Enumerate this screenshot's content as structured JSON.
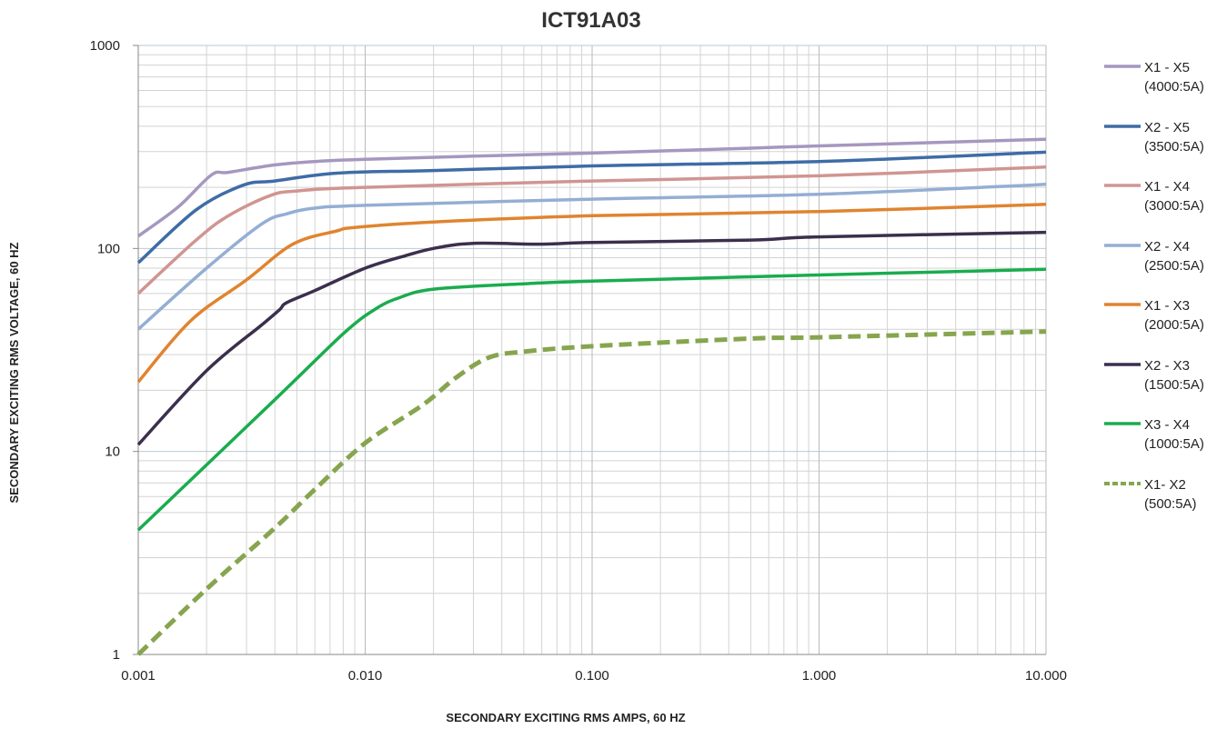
{
  "chart_data": {
    "type": "line",
    "title": "ICT91A03",
    "xlabel": "SECONDARY EXCITING RMS AMPS, 60 HZ",
    "ylabel": "SECONDARY EXCITING RMS VOLTAGE, 60 HZ",
    "x_scale": "log",
    "y_scale": "log",
    "xlim": [
      0.001,
      10
    ],
    "ylim": [
      1,
      1000
    ],
    "x_ticks": [
      "0.001",
      "0.010",
      "0.100",
      "1.000",
      "10.000"
    ],
    "y_ticks": [
      "1",
      "10",
      "100",
      "1000"
    ],
    "grid": true,
    "legend_position": "right",
    "series": [
      {
        "name": "X1 - X5",
        "sub": "(4000:5A)",
        "color": "#a697bf",
        "dash": false,
        "points": [
          [
            0.001,
            115
          ],
          [
            0.0015,
            160
          ],
          [
            0.0021,
            230
          ],
          [
            0.0025,
            237
          ],
          [
            0.004,
            258
          ],
          [
            0.006,
            268
          ],
          [
            0.01,
            275
          ],
          [
            0.03,
            285
          ],
          [
            0.1,
            295
          ],
          [
            0.5,
            312
          ],
          [
            1,
            320
          ],
          [
            10,
            345
          ]
        ]
      },
      {
        "name": "X2 - X5",
        "sub": "(3500:5A)",
        "color": "#3e6ca6",
        "dash": false,
        "points": [
          [
            0.001,
            85
          ],
          [
            0.0018,
            155
          ],
          [
            0.0029,
            205
          ],
          [
            0.004,
            215
          ],
          [
            0.0075,
            235
          ],
          [
            0.02,
            242
          ],
          [
            0.1,
            255
          ],
          [
            1,
            268
          ],
          [
            10,
            298
          ]
        ]
      },
      {
        "name": "X1 - X4",
        "sub": "(3000:5A)",
        "color": "#d09591",
        "dash": false,
        "points": [
          [
            0.001,
            60
          ],
          [
            0.0018,
            110
          ],
          [
            0.0025,
            145
          ],
          [
            0.0038,
            182
          ],
          [
            0.005,
            192
          ],
          [
            0.01,
            200
          ],
          [
            0.1,
            215
          ],
          [
            1,
            228
          ],
          [
            10,
            252
          ]
        ]
      },
      {
        "name": "X2 - X4",
        "sub": "(2500:5A)",
        "color": "#94aed4",
        "dash": false,
        "points": [
          [
            0.001,
            40
          ],
          [
            0.002,
            80
          ],
          [
            0.0035,
            132
          ],
          [
            0.0045,
            148
          ],
          [
            0.006,
            158
          ],
          [
            0.01,
            163
          ],
          [
            0.1,
            175
          ],
          [
            1,
            185
          ],
          [
            10,
            207
          ]
        ]
      },
      {
        "name": "X1 - X3",
        "sub": "(2000:5A)",
        "color": "#e08430",
        "dash": false,
        "points": [
          [
            0.001,
            22
          ],
          [
            0.0017,
            44
          ],
          [
            0.003,
            70
          ],
          [
            0.0048,
            105
          ],
          [
            0.0075,
            122
          ],
          [
            0.009,
            127
          ],
          [
            0.02,
            135
          ],
          [
            0.1,
            145
          ],
          [
            1,
            152
          ],
          [
            10,
            165
          ]
        ]
      },
      {
        "name": "X2 - X3",
        "sub": "(1500:5A)",
        "color": "#3b2f4d",
        "dash": false,
        "points": [
          [
            0.001,
            10.8
          ],
          [
            0.002,
            25
          ],
          [
            0.0035,
            42
          ],
          [
            0.0042,
            50
          ],
          [
            0.0045,
            54
          ],
          [
            0.006,
            62
          ],
          [
            0.01,
            80
          ],
          [
            0.015,
            92
          ],
          [
            0.02,
            100
          ],
          [
            0.03,
            106
          ],
          [
            0.06,
            105
          ],
          [
            0.1,
            107
          ],
          [
            0.5,
            110
          ],
          [
            1,
            114
          ],
          [
            10,
            120
          ]
        ]
      },
      {
        "name": "X3 - X4",
        "sub": "(1000:5A)",
        "color": "#1aac4e",
        "dash": false,
        "points": [
          [
            0.001,
            4.1
          ],
          [
            0.004,
            18
          ],
          [
            0.008,
            38
          ],
          [
            0.011,
            50
          ],
          [
            0.014,
            57
          ],
          [
            0.02,
            63
          ],
          [
            0.05,
            67
          ],
          [
            0.1,
            69
          ],
          [
            1,
            74
          ],
          [
            10,
            79
          ]
        ]
      },
      {
        "name": "X1- X2",
        "sub": "(500:5A)",
        "color": "#86a54e",
        "dash": true,
        "points": [
          [
            0.001,
            1
          ],
          [
            0.002,
            2.1
          ],
          [
            0.004,
            4.2
          ],
          [
            0.006,
            6.5
          ],
          [
            0.01,
            11
          ],
          [
            0.018,
            17
          ],
          [
            0.025,
            23
          ],
          [
            0.035,
            29
          ],
          [
            0.05,
            31
          ],
          [
            0.1,
            33
          ],
          [
            0.5,
            36
          ],
          [
            1,
            36.5
          ],
          [
            10,
            39
          ]
        ]
      }
    ]
  }
}
